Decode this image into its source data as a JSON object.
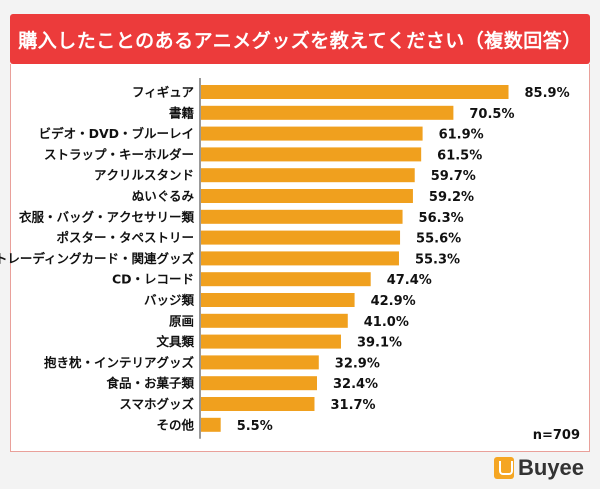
{
  "title": "購入したことのあるアニメグッズを教えてください（複数回答）",
  "sample_note": "n=709",
  "logo": {
    "text": "Buyee"
  },
  "colors": {
    "banner": "#ec3b3b",
    "bar": "#f0a01e"
  },
  "chart_data": {
    "type": "bar",
    "orientation": "horizontal",
    "categories": [
      "フィギュア",
      "書籍",
      "ビデオ・DVD・ブルーレイ",
      "ストラップ・キーホルダー",
      "アクリルスタンド",
      "ぬいぐるみ",
      "衣服・バッグ・アクセサリー類",
      "ポスター・タペストリー",
      "トレーディングカード・関連グッズ",
      "CD・レコード",
      "バッジ類",
      "原画",
      "文具類",
      "抱き枕・インテリアグッズ",
      "食品・お菓子類",
      "スマホグッズ",
      "その他"
    ],
    "values": [
      85.9,
      70.5,
      61.9,
      61.5,
      59.7,
      59.2,
      56.3,
      55.6,
      55.3,
      47.4,
      42.9,
      41.0,
      39.1,
      32.9,
      32.4,
      31.7,
      5.5
    ],
    "value_labels": [
      "85.9%",
      "70.5%",
      "61.9%",
      "61.5%",
      "59.7%",
      "59.2%",
      "56.3%",
      "55.6%",
      "55.3%",
      "47.4%",
      "42.9%",
      "41.0%",
      "39.1%",
      "32.9%",
      "32.4%",
      "31.7%",
      "5.5%"
    ],
    "xlim": [
      0,
      100
    ],
    "grid": false,
    "legend": "none"
  }
}
